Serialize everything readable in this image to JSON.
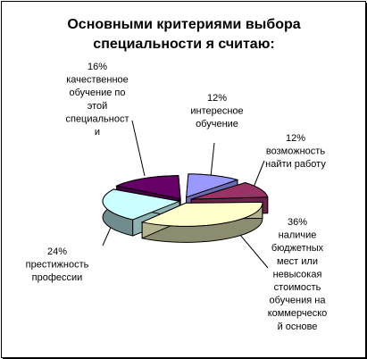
{
  "chart_data": {
    "type": "pie",
    "title": "Основными критериями выбора специальности я считаю:",
    "title_lines": [
      "Основными критериями выбора",
      "специальности я считаю:"
    ],
    "slices": [
      {
        "percent": "12%",
        "value": 12,
        "label": "интересное обучение",
        "label_lines": [
          "интересное",
          "обучение"
        ],
        "color": "#9999ff"
      },
      {
        "percent": "12%",
        "value": 12,
        "label": "возможность найти работу",
        "label_lines": [
          "возможность",
          "найти работу"
        ],
        "color": "#993366"
      },
      {
        "percent": "36%",
        "value": 36,
        "label": "наличие бюджетных мест или невысокая стоимость обучения на коммерческой основе",
        "label_lines": [
          "наличие",
          "бюджетных",
          "мест или",
          "невысокая",
          "стоимость",
          "обучения на",
          "коммерческо",
          "й основе"
        ],
        "color": "#ffffcc"
      },
      {
        "percent": "24%",
        "value": 24,
        "label": "престижность профессии",
        "label_lines": [
          "престижность",
          "профессии"
        ],
        "color": "#ccffff"
      },
      {
        "percent": "16%",
        "value": 16,
        "label": "качественное обучение по этой специальности",
        "label_lines": [
          "качественное",
          "обучение по",
          "этой",
          "специальност",
          "и"
        ],
        "color": "#660066"
      }
    ]
  }
}
